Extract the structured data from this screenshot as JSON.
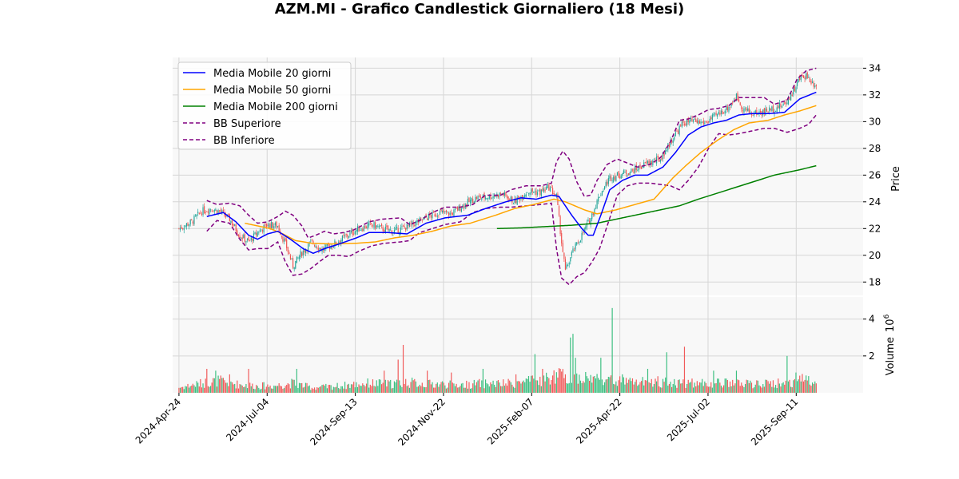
{
  "chart_data": {
    "type": "candlestick",
    "title": "AZM.MI - Grafico Candlestick Giornaliero (18 Mesi)",
    "price_panel": {
      "ylabel": "Price",
      "ylim": [
        17,
        34.8
      ],
      "yticks": [
        18,
        20,
        22,
        24,
        26,
        28,
        30,
        32,
        34
      ],
      "grid": true
    },
    "volume_panel": {
      "ylabel": "Volume",
      "exponent_label": "10",
      "exponent": "6",
      "ylim": [
        0,
        5.2
      ],
      "yticks": [
        2,
        4
      ],
      "grid": true
    },
    "x_ticks": [
      "2024-Apr-24",
      "2024-Jul-04",
      "2024-Sep-13",
      "2024-Nov-22",
      "2025-Feb-07",
      "2025-Apr-22",
      "2025-Jul-02",
      "2025-Sep-11"
    ],
    "x_range_days": [
      -5,
      540
    ],
    "legend": {
      "placement": "top-left",
      "entries": [
        {
          "label": "Media Mobile 20 giorni",
          "color": "#0000ff",
          "style": "solid"
        },
        {
          "label": "Media Mobile 50 giorni",
          "color": "#ffa500",
          "style": "solid"
        },
        {
          "label": "Media Mobile 200 giorni",
          "color": "#008000",
          "style": "solid"
        },
        {
          "label": "BB Superiore",
          "color": "#800080",
          "style": "dashed"
        },
        {
          "label": "BB Inferiore",
          "color": "#800080",
          "style": "dashed"
        }
      ]
    },
    "colors": {
      "up": "#26a69a",
      "down": "#ef5350",
      "up_volume": "#3cbf80",
      "down_volume": "#f15a5a"
    },
    "price_anchors": [
      [
        0,
        22.0
      ],
      [
        10,
        22.5
      ],
      [
        18,
        23.3
      ],
      [
        25,
        23.5
      ],
      [
        32,
        23.3
      ],
      [
        40,
        22.7
      ],
      [
        48,
        21.5
      ],
      [
        55,
        21.0
      ],
      [
        63,
        21.8
      ],
      [
        70,
        22.3
      ],
      [
        78,
        22.2
      ],
      [
        85,
        20.6
      ],
      [
        90,
        19.2
      ],
      [
        97,
        20.2
      ],
      [
        105,
        21.0
      ],
      [
        113,
        20.4
      ],
      [
        120,
        20.7
      ],
      [
        130,
        21.3
      ],
      [
        140,
        21.9
      ],
      [
        152,
        22.3
      ],
      [
        160,
        22.0
      ],
      [
        170,
        21.8
      ],
      [
        182,
        22.2
      ],
      [
        195,
        22.8
      ],
      [
        205,
        23.2
      ],
      [
        215,
        23.1
      ],
      [
        225,
        23.8
      ],
      [
        235,
        24.3
      ],
      [
        245,
        24.4
      ],
      [
        255,
        24.6
      ],
      [
        265,
        24.0
      ],
      [
        275,
        24.8
      ],
      [
        285,
        24.7
      ],
      [
        292,
        25.1
      ],
      [
        298,
        24.4
      ],
      [
        302,
        21.0
      ],
      [
        305,
        18.8
      ],
      [
        310,
        20.1
      ],
      [
        318,
        21.5
      ],
      [
        325,
        22.8
      ],
      [
        332,
        24.5
      ],
      [
        340,
        25.8
      ],
      [
        350,
        26.1
      ],
      [
        360,
        26.4
      ],
      [
        370,
        26.9
      ],
      [
        380,
        27.2
      ],
      [
        390,
        28.8
      ],
      [
        398,
        29.9
      ],
      [
        405,
        30.0
      ],
      [
        415,
        29.9
      ],
      [
        425,
        30.5
      ],
      [
        435,
        31.2
      ],
      [
        440,
        31.9
      ],
      [
        445,
        31.0
      ],
      [
        452,
        30.6
      ],
      [
        460,
        30.7
      ],
      [
        470,
        31.0
      ],
      [
        478,
        31.3
      ],
      [
        485,
        32.3
      ],
      [
        490,
        33.2
      ],
      [
        495,
        33.5
      ],
      [
        500,
        32.9
      ],
      [
        503,
        32.8
      ]
    ],
    "ma20_anchors": [
      [
        22,
        22.9
      ],
      [
        35,
        23.2
      ],
      [
        45,
        22.5
      ],
      [
        55,
        21.5
      ],
      [
        62,
        21.2
      ],
      [
        70,
        21.6
      ],
      [
        78,
        21.8
      ],
      [
        88,
        21.2
      ],
      [
        98,
        20.5
      ],
      [
        106,
        20.15
      ],
      [
        115,
        20.5
      ],
      [
        125,
        20.8
      ],
      [
        140,
        21.3
      ],
      [
        150,
        21.7
      ],
      [
        165,
        21.7
      ],
      [
        180,
        21.6
      ],
      [
        195,
        22.4
      ],
      [
        210,
        22.8
      ],
      [
        228,
        23.0
      ],
      [
        242,
        23.5
      ],
      [
        258,
        24.0
      ],
      [
        270,
        24.3
      ],
      [
        282,
        24.2
      ],
      [
        294,
        24.5
      ],
      [
        300,
        24.4
      ],
      [
        310,
        23.0
      ],
      [
        318,
        22.0
      ],
      [
        323,
        21.5
      ],
      [
        327,
        21.5
      ],
      [
        333,
        23.0
      ],
      [
        340,
        24.9
      ],
      [
        350,
        25.6
      ],
      [
        360,
        26.0
      ],
      [
        370,
        26.0
      ],
      [
        382,
        26.6
      ],
      [
        392,
        27.7
      ],
      [
        402,
        29.0
      ],
      [
        412,
        29.6
      ],
      [
        422,
        29.9
      ],
      [
        432,
        30.1
      ],
      [
        442,
        30.5
      ],
      [
        452,
        30.6
      ],
      [
        466,
        30.6
      ],
      [
        478,
        30.7
      ],
      [
        490,
        31.7
      ],
      [
        503,
        32.2
      ]
    ],
    "ma50_anchors": [
      [
        52,
        22.4
      ],
      [
        62,
        22.2
      ],
      [
        72,
        22.0
      ],
      [
        82,
        21.6
      ],
      [
        92,
        21.1
      ],
      [
        105,
        20.9
      ],
      [
        120,
        20.85
      ],
      [
        140,
        20.9
      ],
      [
        155,
        21.0
      ],
      [
        170,
        21.3
      ],
      [
        185,
        21.5
      ],
      [
        200,
        21.8
      ],
      [
        215,
        22.2
      ],
      [
        230,
        22.4
      ],
      [
        250,
        23.0
      ],
      [
        265,
        23.5
      ],
      [
        280,
        23.8
      ],
      [
        296,
        24.2
      ],
      [
        305,
        24.0
      ],
      [
        320,
        23.4
      ],
      [
        330,
        23.1
      ],
      [
        345,
        23.4
      ],
      [
        360,
        23.8
      ],
      [
        375,
        24.2
      ],
      [
        390,
        25.8
      ],
      [
        400,
        26.7
      ],
      [
        412,
        27.7
      ],
      [
        425,
        28.6
      ],
      [
        438,
        29.4
      ],
      [
        450,
        29.9
      ],
      [
        465,
        30.1
      ],
      [
        478,
        30.5
      ],
      [
        490,
        30.8
      ],
      [
        503,
        31.2
      ]
    ],
    "ma200_anchors": [
      [
        251,
        22.0
      ],
      [
        270,
        22.05
      ],
      [
        290,
        22.15
      ],
      [
        310,
        22.25
      ],
      [
        330,
        22.4
      ],
      [
        345,
        22.7
      ],
      [
        365,
        23.1
      ],
      [
        380,
        23.4
      ],
      [
        395,
        23.7
      ],
      [
        410,
        24.2
      ],
      [
        430,
        24.8
      ],
      [
        450,
        25.4
      ],
      [
        470,
        26.0
      ],
      [
        490,
        26.4
      ],
      [
        503,
        26.7
      ]
    ],
    "bb_upper_anchors": [
      [
        22,
        24.1
      ],
      [
        30,
        23.8
      ],
      [
        40,
        23.9
      ],
      [
        48,
        23.7
      ],
      [
        55,
        23.0
      ],
      [
        62,
        22.4
      ],
      [
        70,
        22.5
      ],
      [
        78,
        22.9
      ],
      [
        84,
        23.3
      ],
      [
        90,
        23.0
      ],
      [
        97,
        22.2
      ],
      [
        102,
        21.3
      ],
      [
        108,
        21.5
      ],
      [
        115,
        21.8
      ],
      [
        122,
        21.6
      ],
      [
        130,
        21.7
      ],
      [
        138,
        21.9
      ],
      [
        150,
        22.5
      ],
      [
        160,
        22.7
      ],
      [
        175,
        22.8
      ],
      [
        182,
        22.3
      ],
      [
        190,
        22.6
      ],
      [
        200,
        23.2
      ],
      [
        210,
        23.6
      ],
      [
        222,
        23.6
      ],
      [
        232,
        23.8
      ],
      [
        242,
        24.5
      ],
      [
        254,
        24.5
      ],
      [
        262,
        24.9
      ],
      [
        274,
        25.2
      ],
      [
        286,
        25.2
      ],
      [
        294,
        25.4
      ],
      [
        298,
        27.0
      ],
      [
        303,
        27.8
      ],
      [
        308,
        27.2
      ],
      [
        314,
        25.5
      ],
      [
        320,
        24.4
      ],
      [
        325,
        24.5
      ],
      [
        330,
        25.6
      ],
      [
        338,
        26.8
      ],
      [
        346,
        27.2
      ],
      [
        354,
        26.9
      ],
      [
        362,
        26.6
      ],
      [
        372,
        26.8
      ],
      [
        380,
        27.3
      ],
      [
        388,
        28.5
      ],
      [
        395,
        30.1
      ],
      [
        402,
        30.2
      ],
      [
        410,
        30.5
      ],
      [
        418,
        30.9
      ],
      [
        426,
        31.0
      ],
      [
        434,
        31.2
      ],
      [
        442,
        31.8
      ],
      [
        452,
        31.8
      ],
      [
        462,
        31.8
      ],
      [
        470,
        31.3
      ],
      [
        480,
        31.6
      ],
      [
        488,
        33.2
      ],
      [
        495,
        33.8
      ],
      [
        503,
        34.0
      ]
    ],
    "bb_lower_anchors": [
      [
        22,
        21.8
      ],
      [
        30,
        22.6
      ],
      [
        40,
        22.4
      ],
      [
        48,
        21.2
      ],
      [
        55,
        20.4
      ],
      [
        62,
        20.5
      ],
      [
        70,
        20.5
      ],
      [
        78,
        21.0
      ],
      [
        84,
        19.5
      ],
      [
        90,
        18.5
      ],
      [
        97,
        18.6
      ],
      [
        104,
        19.0
      ],
      [
        112,
        19.6
      ],
      [
        118,
        20.0
      ],
      [
        126,
        20.0
      ],
      [
        134,
        19.9
      ],
      [
        142,
        20.3
      ],
      [
        152,
        20.7
      ],
      [
        162,
        20.9
      ],
      [
        175,
        21.0
      ],
      [
        182,
        21.1
      ],
      [
        190,
        21.7
      ],
      [
        200,
        22.0
      ],
      [
        210,
        22.3
      ],
      [
        222,
        22.5
      ],
      [
        232,
        23.2
      ],
      [
        242,
        23.5
      ],
      [
        254,
        23.6
      ],
      [
        262,
        23.6
      ],
      [
        274,
        23.7
      ],
      [
        286,
        23.8
      ],
      [
        294,
        23.9
      ],
      [
        298,
        20.5
      ],
      [
        302,
        18.3
      ],
      [
        308,
        17.8
      ],
      [
        314,
        18.4
      ],
      [
        320,
        18.7
      ],
      [
        326,
        19.5
      ],
      [
        332,
        20.5
      ],
      [
        338,
        22.2
      ],
      [
        346,
        24.5
      ],
      [
        354,
        25.2
      ],
      [
        362,
        25.4
      ],
      [
        372,
        25.4
      ],
      [
        380,
        25.3
      ],
      [
        388,
        25.2
      ],
      [
        395,
        24.9
      ],
      [
        402,
        25.6
      ],
      [
        410,
        26.6
      ],
      [
        418,
        28.0
      ],
      [
        426,
        29.1
      ],
      [
        434,
        29.0
      ],
      [
        442,
        29.1
      ],
      [
        452,
        29.3
      ],
      [
        462,
        29.5
      ],
      [
        470,
        29.5
      ],
      [
        480,
        29.2
      ],
      [
        490,
        29.5
      ],
      [
        497,
        29.8
      ],
      [
        503,
        30.5
      ]
    ],
    "volume_anchors": [
      [
        0,
        0.3
      ],
      [
        15,
        0.5
      ],
      [
        30,
        0.7
      ],
      [
        45,
        0.5
      ],
      [
        60,
        0.4
      ],
      [
        75,
        0.4
      ],
      [
        90,
        0.55
      ],
      [
        105,
        0.3
      ],
      [
        120,
        0.35
      ],
      [
        135,
        0.45
      ],
      [
        150,
        0.55
      ],
      [
        165,
        0.5
      ],
      [
        180,
        0.6
      ],
      [
        195,
        0.5
      ],
      [
        210,
        0.5
      ],
      [
        225,
        0.45
      ],
      [
        240,
        0.55
      ],
      [
        255,
        0.5
      ],
      [
        270,
        0.6
      ],
      [
        285,
        0.7
      ],
      [
        300,
        1.0
      ],
      [
        315,
        0.9
      ],
      [
        330,
        0.8
      ],
      [
        345,
        0.65
      ],
      [
        360,
        0.6
      ],
      [
        375,
        0.6
      ],
      [
        390,
        0.6
      ],
      [
        405,
        0.55
      ],
      [
        420,
        0.55
      ],
      [
        435,
        0.55
      ],
      [
        450,
        0.5
      ],
      [
        465,
        0.5
      ],
      [
        480,
        0.6
      ],
      [
        495,
        0.8
      ],
      [
        503,
        0.7
      ]
    ],
    "volume_spikes": [
      [
        22,
        1.3
      ],
      [
        29,
        1.2
      ],
      [
        40,
        1.0
      ],
      [
        55,
        1.3
      ],
      [
        93,
        1.3
      ],
      [
        162,
        1.2
      ],
      [
        173,
        1.8
      ],
      [
        177,
        2.6
      ],
      [
        196,
        1.2
      ],
      [
        215,
        1.1
      ],
      [
        240,
        1.3
      ],
      [
        266,
        1.0
      ],
      [
        281,
        2.1
      ],
      [
        287,
        1.3
      ],
      [
        301,
        1.3
      ],
      [
        305,
        1.0
      ],
      [
        309,
        3.0
      ],
      [
        311,
        3.2
      ],
      [
        313,
        1.9
      ],
      [
        333,
        1.9
      ],
      [
        342,
        4.6
      ],
      [
        350,
        1.0
      ],
      [
        370,
        1.3
      ],
      [
        378,
        0.9
      ],
      [
        385,
        2.2
      ],
      [
        399,
        2.5
      ],
      [
        422,
        1.2
      ],
      [
        440,
        1.2
      ],
      [
        480,
        2.0
      ],
      [
        487,
        1.1
      ]
    ]
  }
}
